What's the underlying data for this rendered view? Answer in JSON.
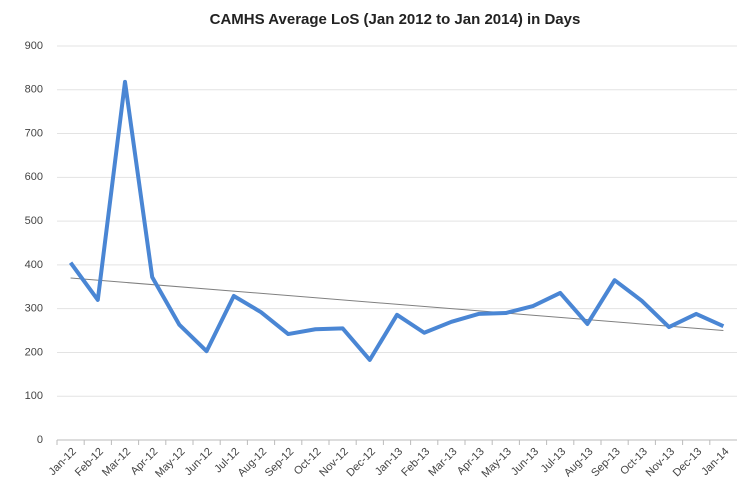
{
  "chart_data": {
    "type": "line",
    "title": "CAMHS Average LoS (Jan 2012 to Jan 2014) in Days",
    "categories": [
      "Jan-12",
      "Feb-12",
      "Mar-12",
      "Apr-12",
      "May-12",
      "Jun-12",
      "Jul-12",
      "Aug-12",
      "Sep-12",
      "Oct-12",
      "Nov-12",
      "Dec-12",
      "Jan-13",
      "Feb-13",
      "Mar-13",
      "Apr-13",
      "May-13",
      "Jun-13",
      "Jul-13",
      "Aug-13",
      "Sep-13",
      "Oct-13",
      "Nov-13",
      "Dec-13",
      "Jan-14"
    ],
    "series": [
      {
        "color": "#4a86d4",
        "values": [
          405,
          320,
          818,
          372,
          263,
          203,
          329,
          292,
          242,
          253,
          255,
          183,
          286,
          245,
          270,
          288,
          290,
          306,
          336,
          265,
          365,
          318,
          258,
          288,
          260
        ]
      }
    ],
    "trend": {
      "color": "#808080",
      "values": [
        370,
        250
      ]
    },
    "ylim": [
      0,
      900
    ],
    "yticks": [
      0,
      100,
      200,
      300,
      400,
      500,
      600,
      700,
      800,
      900
    ],
    "grid": true
  }
}
